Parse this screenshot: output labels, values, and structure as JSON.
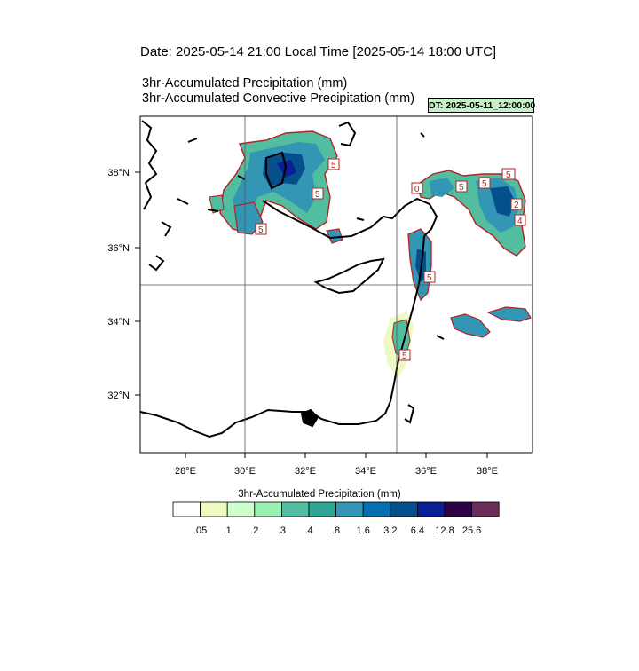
{
  "header": {
    "date_line": "Date: 2025-05-14  21:00 Local Time [2025-05-14  18:00 UTC]",
    "title_line_1": "3hr-Accumulated Precipitation   (mm)",
    "title_line_2": "3hr-Accumulated Convective Precipitation   (mm)",
    "dt_badge": "DT: 2025-05-11_12:00:00",
    "dt_badge_color": "#c8f0c8"
  },
  "map": {
    "lon_range": [
      26.5,
      39.5
    ],
    "lat_range": [
      30.5,
      39.5
    ],
    "lon_ticks": [
      "28°E",
      "30°E",
      "32°E",
      "34°E",
      "36°E",
      "38°E"
    ],
    "lat_ticks": [
      "32°N",
      "34°N",
      "36°N",
      "38°N"
    ],
    "gridlines_lon": [
      30,
      35
    ],
    "gridlines_lat": [
      35
    ],
    "contour_labels": [
      "5",
      "5",
      "5",
      "0",
      "5",
      "5",
      "5",
      "2",
      "4",
      "5",
      "5"
    ]
  },
  "colorbar": {
    "title": "3hr-Accumulated Precipitation   (mm)",
    "labels": [
      ".05",
      ".1",
      ".2",
      ".3",
      ".4",
      ".8",
      "1.6",
      "3.2",
      "6.4",
      "12.8",
      "25.6"
    ],
    "colors": [
      "#ffffff",
      "#edfac2",
      "#cdffcd",
      "#99f0b2",
      "#53bd9f",
      "#32a696",
      "#3296b4",
      "#0570b0",
      "#05508c",
      "#0a1f96",
      "#2c0246",
      "#6a2c5a"
    ]
  }
}
